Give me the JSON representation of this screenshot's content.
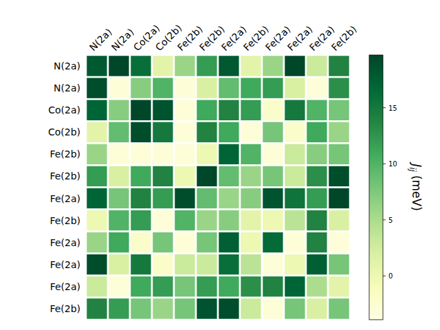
{
  "chart_data": {
    "type": "heatmap",
    "x_categories": [
      "N(2a)",
      "N(2a)",
      "Co(2a)",
      "Co(2b)",
      "Fe(2b)",
      "Fe(2b)",
      "Fe(2a)",
      "Fe(2b)",
      "Fe(2a)",
      "Fe(2a)",
      "Fe(2a)",
      "Fe(2b)"
    ],
    "y_categories": [
      "N(2a)",
      "N(2a)",
      "Co(2a)",
      "Co(2b)",
      "Fe(2b)",
      "Fe(2b)",
      "Fe(2a)",
      "Fe(2b)",
      "Fe(2a)",
      "Fe(2a)",
      "Fe(2a)",
      "Fe(2b)"
    ],
    "cells": [
      [
        18,
        19.5,
        16,
        1,
        6,
        12,
        18,
        1,
        6,
        19.5,
        3,
        14
      ],
      [
        19,
        -3,
        7,
        10,
        -3,
        2,
        9,
        11,
        12,
        2,
        -3,
        13
      ],
      [
        17,
        7,
        19.5,
        18.5,
        -3,
        11,
        14,
        12,
        -2,
        15,
        10,
        8
      ],
      [
        1,
        9,
        19,
        15,
        -3,
        14,
        11,
        -3,
        8,
        -2,
        11,
        6
      ],
      [
        6,
        -3,
        -3,
        -3,
        -3,
        0,
        17,
        10,
        -3,
        3,
        7,
        8
      ],
      [
        12,
        2,
        11,
        14,
        0,
        19.5,
        9,
        6,
        8,
        3,
        13,
        19
      ],
      [
        17,
        8,
        14,
        12,
        19,
        9,
        6,
        7,
        18.5,
        15.5,
        12,
        19.5
      ],
      [
        0,
        10,
        12,
        -3,
        10,
        6,
        7,
        1,
        0,
        4,
        14,
        2
      ],
      [
        6,
        11,
        -2,
        8,
        -3,
        8,
        17.5,
        0,
        16.5,
        -3,
        14,
        -3
      ],
      [
        19,
        2,
        15,
        -2,
        3,
        3,
        16,
        4,
        -3,
        0,
        17.5,
        8
      ],
      [
        3,
        -3,
        11,
        12,
        8,
        12,
        11,
        13,
        14,
        17,
        5,
        1
      ],
      [
        14,
        12,
        8,
        6,
        8,
        18.5,
        19,
        3,
        -3,
        8,
        2,
        8
      ]
    ],
    "colorbar": {
      "range": [
        -3.9,
        19.7
      ],
      "ticks": [
        0,
        5,
        10,
        15
      ],
      "label": {
        "symbol": "J",
        "subscript": "ij",
        "unit": "(meV)"
      }
    }
  }
}
